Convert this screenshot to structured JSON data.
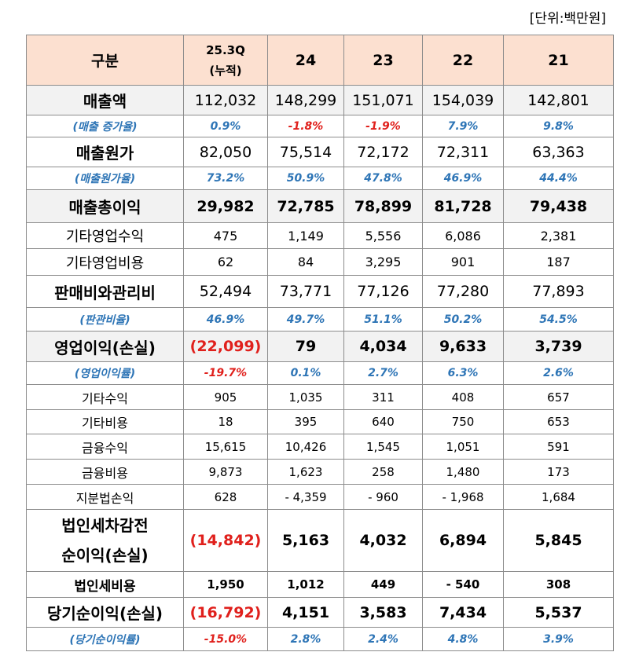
{
  "unit_note": "[단위:백만원]",
  "table": {
    "header": [
      "구분",
      [
        "25.3Q",
        "(누적)"
      ],
      "24",
      "23",
      "22",
      "21"
    ],
    "rows": [
      {
        "label": "매출액",
        "values": [
          "112,032",
          "148,299",
          "151,071",
          "154,039",
          "142,801"
        ]
      },
      {
        "label": "(매출 증가율)",
        "values": [
          "0.9%",
          "-1.8%",
          "-1.9%",
          "7.9%",
          "9.8%"
        ]
      },
      {
        "label": "매출원가",
        "values": [
          "82,050",
          "75,514",
          "72,172",
          "72,311",
          "63,363"
        ]
      },
      {
        "label": "(매출원가율)",
        "values": [
          "73.2%",
          "50.9%",
          "47.8%",
          "46.9%",
          "44.4%"
        ]
      },
      {
        "label": "매출총이익",
        "values": [
          "29,982",
          "72,785",
          "78,899",
          "81,728",
          "79,438"
        ]
      },
      {
        "label": "기타영업수익",
        "values": [
          "475",
          "1,149",
          "5,556",
          "6,086",
          "2,381"
        ]
      },
      {
        "label": "기타영업비용",
        "values": [
          "62",
          "84",
          "3,295",
          "901",
          "187"
        ]
      },
      {
        "label": "판매비와관리비",
        "values": [
          "52,494",
          "73,771",
          "77,126",
          "77,280",
          "77,893"
        ]
      },
      {
        "label": "(판관비율)",
        "values": [
          "46.9%",
          "49.7%",
          "51.1%",
          "50.2%",
          "54.5%"
        ]
      },
      {
        "label": "영업이익(손실)",
        "values": [
          "(22,099)",
          "79",
          "4,034",
          "9,633",
          "3,739"
        ]
      },
      {
        "label": "(영업이익률)",
        "values": [
          "-19.7%",
          "0.1%",
          "2.7%",
          "6.3%",
          "2.6%"
        ]
      },
      {
        "label": "기타수익",
        "values": [
          "905",
          "1,035",
          "311",
          "408",
          "657"
        ]
      },
      {
        "label": "기타비용",
        "values": [
          "18",
          "395",
          "640",
          "750",
          "653"
        ]
      },
      {
        "label": "금융수익",
        "values": [
          "15,615",
          "10,426",
          "1,545",
          "1,051",
          "591"
        ]
      },
      {
        "label": "금융비용",
        "values": [
          "9,873",
          "1,623",
          "258",
          "1,480",
          "173"
        ]
      },
      {
        "label": "지분법손익",
        "values": [
          "628",
          "- 4,359",
          "- 960",
          "- 1,968",
          "1,684"
        ]
      },
      {
        "label": [
          "법인세차감전",
          "순이익(손실)"
        ],
        "values": [
          "(14,842)",
          "5,163",
          "4,032",
          "6,894",
          "5,845"
        ]
      },
      {
        "label": "법인세비용",
        "values": [
          "1,950",
          "1,012",
          "449",
          "- 540",
          "308"
        ]
      },
      {
        "label": "당기순이익(손실)",
        "values": [
          "(16,792)",
          "4,151",
          "3,583",
          "7,434",
          "5,537"
        ]
      },
      {
        "label": "(당기순이익률)",
        "values": [
          "-15.0%",
          "2.8%",
          "2.4%",
          "4.8%",
          "3.9%"
        ]
      }
    ]
  }
}
